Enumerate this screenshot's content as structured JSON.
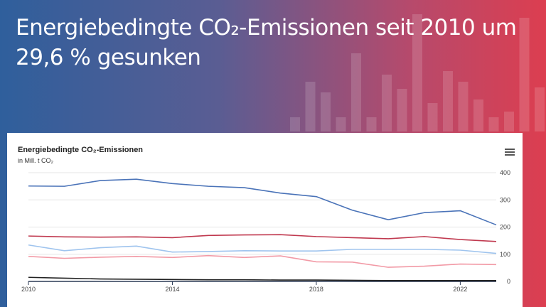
{
  "headline": "Energiebedingte CO₂-Emissionen seit 2010 um 29,6 % gesunken",
  "chart_data": {
    "type": "line",
    "title": "Energiebedingte CO₂-Emissionen",
    "subtitle": "in Mill. t CO₂",
    "x": [
      2010,
      2011,
      2012,
      2013,
      2014,
      2015,
      2016,
      2017,
      2018,
      2019,
      2020,
      2021,
      2022,
      2023
    ],
    "xticks": [
      "2010",
      "2014",
      "2018",
      "2022"
    ],
    "yticks": [
      "0",
      "100",
      "200",
      "300",
      "400"
    ],
    "ylim": [
      0,
      400
    ],
    "y_axis_side": "right",
    "grid": true,
    "legend": false,
    "series": [
      {
        "color": "#4a73b8",
        "values": [
          351,
          350,
          371,
          376,
          360,
          350,
          345,
          325,
          312,
          262,
          227,
          253,
          260,
          208
        ]
      },
      {
        "color": "#c0394f",
        "values": [
          167,
          164,
          163,
          164,
          161,
          169,
          171,
          172,
          165,
          161,
          157,
          165,
          154,
          147
        ]
      },
      {
        "color": "#9fc4ee",
        "values": [
          134,
          113,
          124,
          130,
          108,
          110,
          113,
          112,
          112,
          118,
          118,
          118,
          115,
          103
        ]
      },
      {
        "color": "#f29aa6",
        "values": [
          92,
          85,
          89,
          92,
          88,
          95,
          88,
          94,
          72,
          71,
          52,
          56,
          64,
          62
        ]
      },
      {
        "color": "#222222",
        "values": [
          15,
          12,
          9,
          8,
          7,
          6,
          6,
          5,
          5,
          4,
          3,
          3,
          3,
          3
        ]
      }
    ]
  }
}
